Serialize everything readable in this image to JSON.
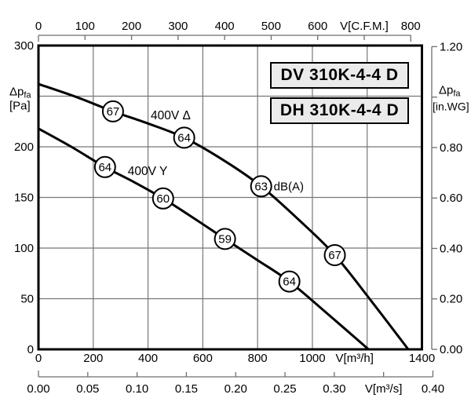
{
  "chart_data": {
    "type": "line",
    "titles": [
      "DV 310K-4-4 D",
      "DH 310K-4-4 D"
    ],
    "noise_unit": "dB(A)",
    "x_axis_primary": {
      "label": "V[m³/h]",
      "range": [
        0,
        1400
      ],
      "ticks": [
        0,
        200,
        400,
        600,
        800,
        1000,
        1200,
        1400
      ],
      "tick_labels": [
        "0",
        "200",
        "400",
        "600",
        "800",
        "1000",
        "V[m³/h]",
        "1400"
      ]
    },
    "x_axis_secondary": {
      "label": "V[m³/s]",
      "range": [
        0,
        0.4
      ],
      "ticks": [
        0,
        0.05,
        0.1,
        0.15,
        0.2,
        0.25,
        0.3,
        0.35,
        0.4
      ],
      "tick_labels": [
        "0.00",
        "0.05",
        "0.10",
        "0.15",
        "0.20",
        "0.25",
        "0.30",
        "V[m³/s]",
        "0.40"
      ]
    },
    "x_axis_top": {
      "label": "V[C.F.M.]",
      "range": [
        0,
        800
      ],
      "ticks": [
        0,
        100,
        200,
        300,
        400,
        500,
        600,
        700,
        800
      ],
      "tick_labels": [
        "0",
        "100",
        "200",
        "300",
        "400",
        "500",
        "600",
        "V[C.F.M.]",
        "800"
      ]
    },
    "y_axis_left": {
      "label_main": "Δp",
      "label_sub": "fa",
      "label_unit": "[Pa]",
      "range": [
        0,
        300
      ],
      "ticks": [
        0,
        50,
        100,
        150,
        200,
        250,
        300
      ],
      "tick_labels": [
        "0",
        "50",
        "100",
        "150",
        "200",
        "",
        "300"
      ],
      "unit_label_at": 250
    },
    "y_axis_right": {
      "label_main": "Δp",
      "label_sub": "fa",
      "label_unit": "[in.WG]",
      "range": [
        0,
        1.2
      ],
      "ticks": [
        0,
        0.2,
        0.4,
        0.6,
        0.8,
        1.0,
        1.2
      ],
      "tick_labels": [
        "0.00",
        "0.20",
        "0.40",
        "0.60",
        "0.80",
        "",
        "1.20"
      ],
      "unit_label_at": 1.0
    },
    "grid": {
      "x_step": 200,
      "y_step": 50
    },
    "series": [
      {
        "key": "400v-delta",
        "name": "400V Δ",
        "label_pos": {
          "v": 410,
          "p": 231
        },
        "points": [
          [
            0,
            262
          ],
          [
            140,
            249
          ],
          [
            272,
            235
          ],
          [
            400,
            223
          ],
          [
            532,
            209
          ],
          [
            680,
            186
          ],
          [
            813,
            161
          ],
          [
            950,
            128
          ],
          [
            1082,
            93
          ],
          [
            1220,
            46
          ],
          [
            1350,
            0
          ]
        ],
        "noise_markers": [
          {
            "db": "67",
            "v": 272,
            "p": 235
          },
          {
            "db": "64",
            "v": 532,
            "p": 209
          },
          {
            "db": "63",
            "v": 813,
            "p": 161,
            "suffix": "dB(A)"
          },
          {
            "db": "67",
            "v": 1082,
            "p": 93
          }
        ]
      },
      {
        "key": "400v-y",
        "name": "400V Y",
        "label_pos": {
          "v": 326,
          "p": 176
        },
        "points": [
          [
            0,
            218
          ],
          [
            120,
            200
          ],
          [
            243,
            180
          ],
          [
            350,
            165
          ],
          [
            455,
            149
          ],
          [
            570,
            129
          ],
          [
            681,
            109
          ],
          [
            800,
            88
          ],
          [
            916,
            67
          ],
          [
            1060,
            34
          ],
          [
            1205,
            0
          ]
        ],
        "noise_markers": [
          {
            "db": "64",
            "v": 243,
            "p": 180
          },
          {
            "db": "60",
            "v": 455,
            "p": 149
          },
          {
            "db": "59",
            "v": 681,
            "p": 109
          },
          {
            "db": "64",
            "v": 916,
            "p": 67
          }
        ]
      }
    ],
    "colors": {
      "curve": "#000000",
      "grid": "#777777",
      "axis": "#6e6e6e",
      "text": "#000000",
      "title_box_bg": "#ebebeb",
      "title_box_border": "#000000"
    }
  }
}
